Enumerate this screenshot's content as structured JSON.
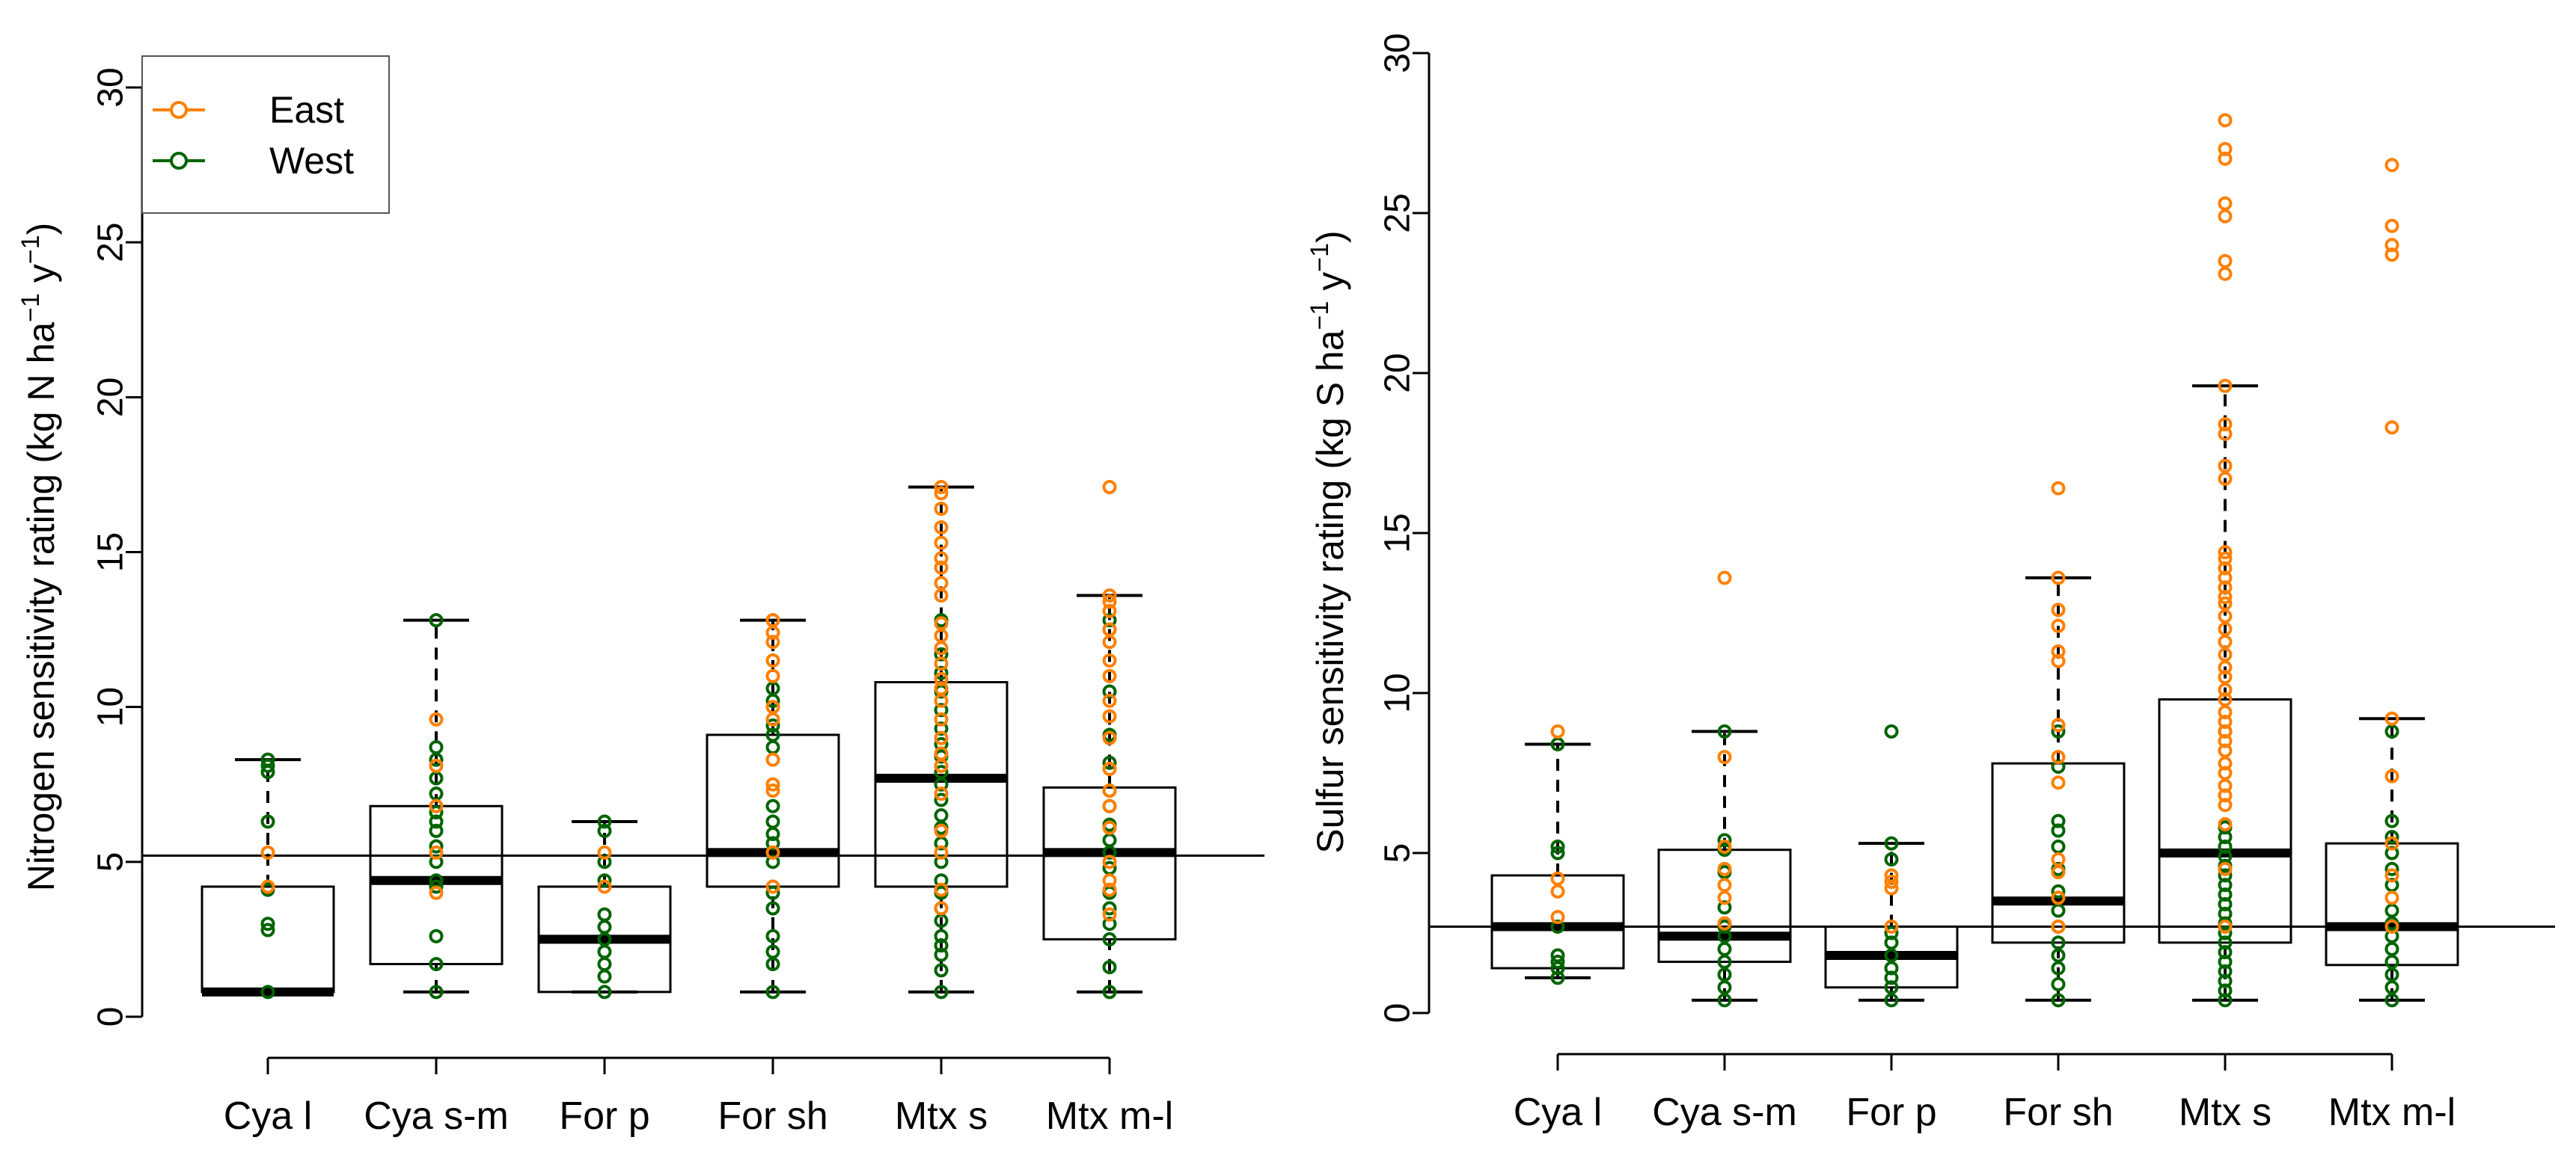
{
  "colors": {
    "East": "#FF8000",
    "West": "#006400",
    "axis": "#000000"
  },
  "chart_data": [
    {
      "type": "boxplot",
      "id": "nitrogen",
      "ylabel": "Nitrogen sensitivity rating (kg N ha",
      "ylabel_unit_tail": "y",
      "ylabel_exp": "−1",
      "ylabel_close": ")",
      "ylim": [
        0,
        30
      ],
      "yticks": [
        0,
        5,
        10,
        15,
        20,
        25,
        30
      ],
      "ytick_labels": [
        "0",
        "5",
        "10",
        "15",
        "20",
        "25",
        "30"
      ],
      "reference_line": 5.2,
      "categories": [
        "Cya l",
        "Cya s-m",
        "For p",
        "For sh",
        "Mtx s",
        "Mtx m-l"
      ],
      "legend": {
        "position": "top-left",
        "entries": [
          "East",
          "West"
        ]
      },
      "boxes": [
        {
          "category": "Cya l",
          "whisker_low": 0.8,
          "q1": 0.8,
          "median": 0.8,
          "q3": 4.2,
          "whisker_high": 8.3
        },
        {
          "category": "Cya s-m",
          "whisker_low": 0.8,
          "q1": 1.7,
          "median": 4.4,
          "q3": 6.8,
          "whisker_high": 12.8
        },
        {
          "category": "For p",
          "whisker_low": 0.8,
          "q1": 0.8,
          "median": 2.5,
          "q3": 4.2,
          "whisker_high": 6.3
        },
        {
          "category": "For sh",
          "whisker_low": 0.8,
          "q1": 4.2,
          "median": 5.3,
          "q3": 9.1,
          "whisker_high": 12.8
        },
        {
          "category": "Mtx s",
          "whisker_low": 0.8,
          "q1": 4.2,
          "median": 7.7,
          "q3": 10.8,
          "whisker_high": 17.1
        },
        {
          "category": "Mtx m-l",
          "whisker_low": 0.8,
          "q1": 2.5,
          "median": 5.3,
          "q3": 7.4,
          "whisker_high": 13.6
        }
      ],
      "points": [
        {
          "category": "Cya l",
          "East": [
            4.2,
            5.3
          ],
          "West": [
            0.8,
            2.8,
            3.0,
            4.1,
            6.3,
            7.9,
            8.1,
            8.3
          ]
        },
        {
          "category": "Cya s-m",
          "East": [
            4.0,
            5.3,
            6.8,
            8.1,
            9.6
          ],
          "West": [
            0.8,
            1.7,
            2.6,
            4.2,
            4.4,
            5.0,
            5.5,
            6.0,
            6.3,
            6.6,
            7.2,
            7.7,
            8.3,
            8.7,
            12.8
          ]
        },
        {
          "category": "For p",
          "East": [
            4.2,
            5.3
          ],
          "West": [
            0.8,
            1.3,
            1.7,
            2.1,
            2.5,
            2.9,
            3.3,
            4.4,
            5.0,
            6.0,
            6.3
          ]
        },
        {
          "category": "For sh",
          "East": [
            4.2,
            5.3,
            7.3,
            7.5,
            8.3,
            9.6,
            10.0,
            11.0,
            11.5,
            12.1,
            12.4,
            12.8
          ],
          "West": [
            0.8,
            1.7,
            2.1,
            2.6,
            3.5,
            4.0,
            5.0,
            5.6,
            5.9,
            6.3,
            6.8,
            8.7,
            9.1,
            9.4,
            10.2,
            10.6,
            12.8
          ]
        },
        {
          "category": "Mtx s",
          "East": [
            3.5,
            4.1,
            5.3,
            6.0,
            7.2,
            8.1,
            8.5,
            9.0,
            9.6,
            10.2,
            10.6,
            10.9,
            11.4,
            11.9,
            12.3,
            12.7,
            13.6,
            14.0,
            14.5,
            14.8,
            15.3,
            15.8,
            16.4,
            16.9,
            17.1
          ],
          "West": [
            0.8,
            1.5,
            2.0,
            2.3,
            2.6,
            3.1,
            3.5,
            4.0,
            4.4,
            5.0,
            5.6,
            6.1,
            6.5,
            7.0,
            7.5,
            7.9,
            8.4,
            8.8,
            9.3,
            9.9,
            10.5,
            11.1,
            11.7,
            12.8
          ]
        },
        {
          "category": "Mtx m-l",
          "East": [
            3.3,
            4.1,
            4.4,
            5.0,
            6.1,
            6.8,
            7.3,
            8.0,
            9.0,
            9.7,
            10.2,
            11.0,
            11.5,
            12.1,
            12.5,
            13.1,
            13.4,
            13.6,
            17.1
          ],
          "West": [
            0.8,
            1.6,
            2.5,
            3.0,
            3.5,
            4.0,
            4.8,
            5.3,
            5.7,
            6.2,
            6.8,
            7.3,
            8.2,
            9.1,
            10.5,
            12.5,
            12.8
          ]
        }
      ]
    },
    {
      "type": "boxplot",
      "id": "sulfur",
      "ylabel": "Sulfur sensitivity rating (kg S ha",
      "ylabel_unit_tail": "y",
      "ylabel_exp": "−1",
      "ylabel_close": ")",
      "ylim": [
        0,
        30
      ],
      "yticks": [
        0,
        5,
        10,
        15,
        20,
        25,
        30
      ],
      "ytick_labels": [
        "0",
        "5",
        "10",
        "15",
        "20",
        "25",
        "30"
      ],
      "reference_line": 2.7,
      "categories": [
        "Cya l",
        "Cya s-m",
        "For p",
        "For sh",
        "Mtx s",
        "Mtx m-l"
      ],
      "boxes": [
        {
          "category": "Cya l",
          "whisker_low": 1.1,
          "q1": 1.4,
          "median": 2.7,
          "q3": 4.3,
          "whisker_high": 8.4
        },
        {
          "category": "Cya s-m",
          "whisker_low": 0.4,
          "q1": 1.6,
          "median": 2.4,
          "q3": 5.1,
          "whisker_high": 8.8
        },
        {
          "category": "For p",
          "whisker_low": 0.4,
          "q1": 0.8,
          "median": 1.8,
          "q3": 2.7,
          "whisker_high": 5.3
        },
        {
          "category": "For sh",
          "whisker_low": 0.4,
          "q1": 2.2,
          "median": 3.5,
          "q3": 7.8,
          "whisker_high": 13.6
        },
        {
          "category": "Mtx s",
          "whisker_low": 0.4,
          "q1": 2.2,
          "median": 5.0,
          "q3": 9.8,
          "whisker_high": 19.6
        },
        {
          "category": "Mtx m-l",
          "whisker_low": 0.4,
          "q1": 1.5,
          "median": 2.7,
          "q3": 5.3,
          "whisker_high": 9.2
        }
      ],
      "points": [
        {
          "category": "Cya l",
          "East": [
            3.0,
            3.8,
            4.2,
            8.8
          ],
          "West": [
            1.1,
            1.4,
            1.6,
            1.8,
            2.7,
            5.0,
            5.2,
            8.4
          ]
        },
        {
          "category": "Cya s-m",
          "East": [
            2.8,
            3.6,
            4.0,
            4.5,
            5.2,
            8.0,
            13.6
          ],
          "West": [
            0.4,
            0.8,
            1.2,
            1.6,
            2.0,
            2.4,
            2.7,
            3.3,
            4.4,
            5.1,
            5.4,
            8.8
          ]
        },
        {
          "category": "For p",
          "East": [
            2.7,
            3.9,
            4.1,
            4.3
          ],
          "West": [
            0.4,
            0.8,
            1.1,
            1.4,
            1.8,
            2.2,
            2.5,
            4.8,
            5.3,
            8.8
          ]
        },
        {
          "category": "For sh",
          "East": [
            2.7,
            3.6,
            4.4,
            4.8,
            7.2,
            8.0,
            9.0,
            11.0,
            11.3,
            12.1,
            12.6,
            13.6,
            16.4
          ],
          "West": [
            0.4,
            0.9,
            1.4,
            1.8,
            2.2,
            2.7,
            3.2,
            3.8,
            4.5,
            5.2,
            5.7,
            6.0,
            7.7,
            8.8
          ]
        },
        {
          "category": "Mtx s",
          "East": [
            2.7,
            4.5,
            5.9,
            6.5,
            6.8,
            7.1,
            7.5,
            7.8,
            8.2,
            8.5,
            8.8,
            9.1,
            9.4,
            9.8,
            10.1,
            10.5,
            10.8,
            11.2,
            11.6,
            12.0,
            12.4,
            12.8,
            13.0,
            13.3,
            13.6,
            13.9,
            14.2,
            14.4,
            16.7,
            17.1,
            18.1,
            18.4,
            19.6,
            23.1,
            23.5,
            24.9,
            25.3,
            26.7,
            27.0,
            27.9
          ],
          "West": [
            0.4,
            0.7,
            1.0,
            1.3,
            1.6,
            1.9,
            2.2,
            2.5,
            2.8,
            3.1,
            3.4,
            3.7,
            4.0,
            4.3,
            4.6,
            4.9,
            5.2,
            5.5,
            5.8,
            8.8
          ]
        },
        {
          "category": "Mtx m-l",
          "East": [
            2.7,
            3.6,
            4.3,
            5.3,
            7.4,
            9.2,
            18.3,
            23.7,
            24.0,
            24.6,
            26.5
          ],
          "West": [
            0.4,
            0.8,
            1.2,
            1.6,
            2.0,
            2.4,
            2.8,
            3.2,
            4.0,
            4.5,
            5.0,
            5.5,
            6.0,
            8.8
          ]
        }
      ]
    }
  ]
}
